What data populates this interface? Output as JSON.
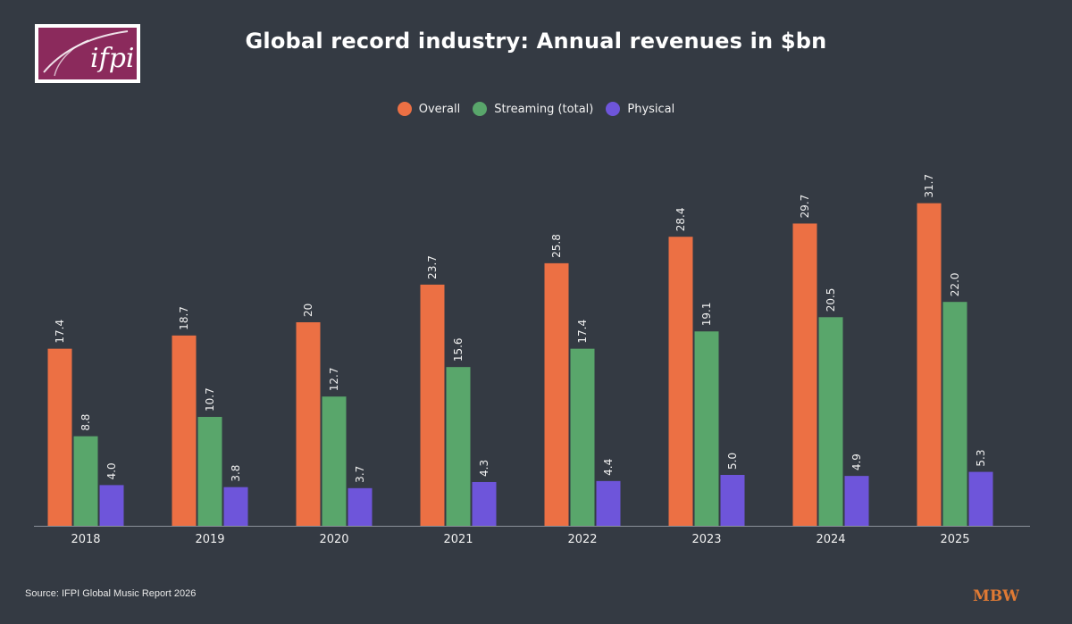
{
  "header": {
    "title": "Global record industry: Annual revenues in $bn",
    "logo_text": "ifpi"
  },
  "footer": {
    "source": "Source: IFPI Global Music Report 2026",
    "publisher_logo_text": "MBW"
  },
  "colors": {
    "background": "#343a43",
    "overall": "#ec7044",
    "streaming": "#59a66b",
    "physical": "#6e55da",
    "logo_purple": "#8b2a5c",
    "mbw_orange": "#e07a34"
  },
  "chart_data": {
    "type": "bar",
    "title": "Global record industry: Annual revenues in $bn",
    "xlabel": "",
    "ylabel": "",
    "grid": false,
    "legend_position": "top-center",
    "ylim": [
      0,
      33
    ],
    "categories": [
      "2018",
      "2019",
      "2020",
      "2021",
      "2022",
      "2023",
      "2024",
      "2025"
    ],
    "series": [
      {
        "name": "Overall",
        "color": "#ec7044",
        "values": [
          17.4,
          18.7,
          20,
          23.7,
          25.8,
          28.4,
          29.7,
          31.7
        ],
        "labels": [
          "17.4",
          "18.7",
          "20",
          "23.7",
          "25.8",
          "28.4",
          "29.7",
          "31.7"
        ]
      },
      {
        "name": "Streaming (total)",
        "color": "#59a66b",
        "values": [
          8.8,
          10.7,
          12.7,
          15.6,
          17.4,
          19.1,
          20.5,
          22.0
        ],
        "labels": [
          "8.8",
          "10.7",
          "12.7",
          "15.6",
          "17.4",
          "19.1",
          "20.5",
          "22.0"
        ]
      },
      {
        "name": "Physical",
        "color": "#6e55da",
        "values": [
          4.0,
          3.8,
          3.7,
          4.3,
          4.4,
          5.0,
          4.9,
          5.3
        ],
        "labels": [
          "4.0",
          "3.8",
          "3.7",
          "4.3",
          "4.4",
          "5.0",
          "4.9",
          "5.3"
        ]
      }
    ]
  }
}
